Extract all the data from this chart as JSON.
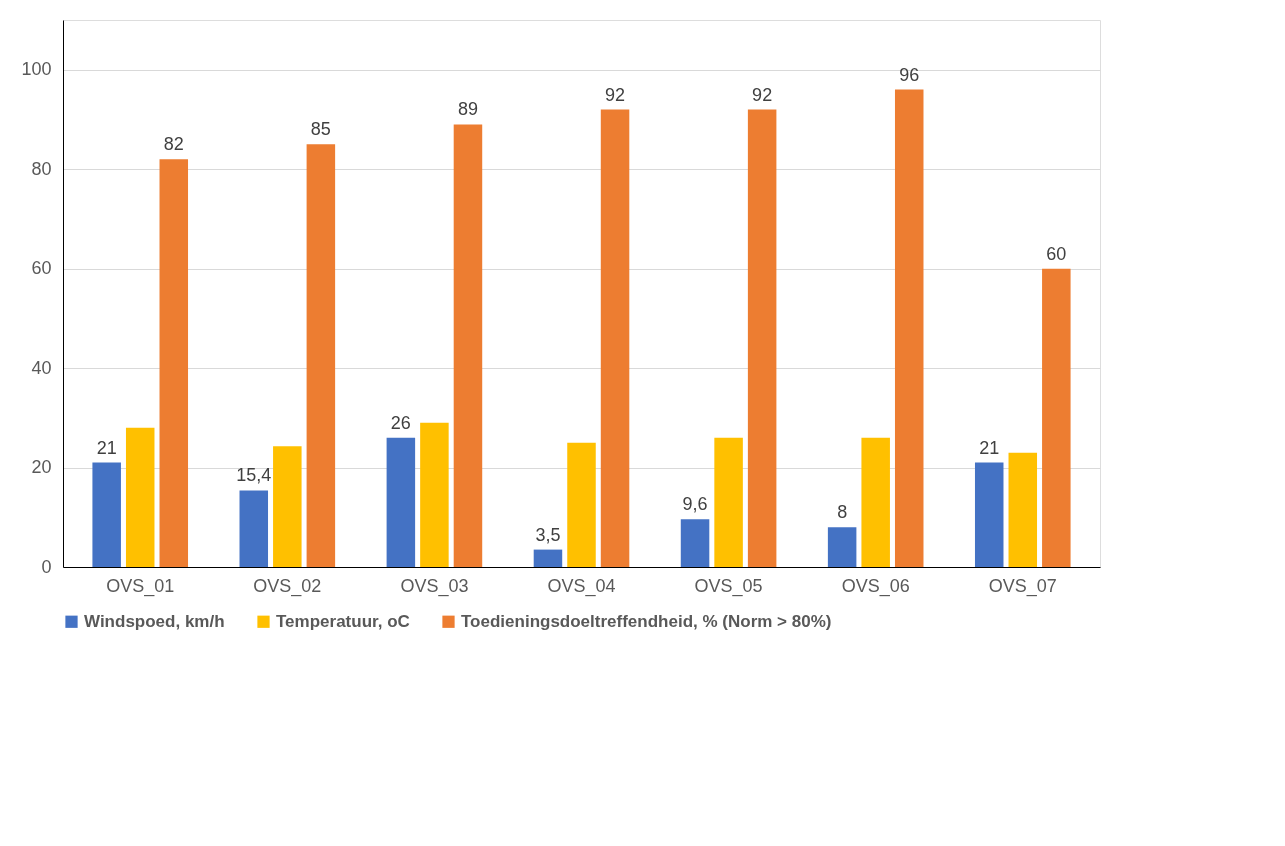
{
  "chart_data": {
    "type": "bar",
    "categories": [
      "OVS_01",
      "OVS_02",
      "OVS_03",
      "OVS_04",
      "OVS_05",
      "OVS_06",
      "OVS_07"
    ],
    "series": [
      {
        "name": "Windspoed, km/h",
        "color": "#4472c4",
        "values": [
          21,
          15.4,
          26,
          3.5,
          9.6,
          8,
          21
        ],
        "value_labels": [
          "21",
          "15,4",
          "26",
          "3,5",
          "9,6",
          "8",
          "21"
        ]
      },
      {
        "name": "Temperatuur, oC",
        "color": "#ffc000",
        "values": [
          28,
          24.3,
          29,
          25,
          26,
          26,
          23
        ]
      },
      {
        "name": "Toedieningsdoeltreffendheid, % (Norm > 80%)",
        "color": "#ed7d31",
        "values": [
          82,
          85,
          89,
          92,
          92,
          96,
          60
        ],
        "value_labels": [
          "82",
          "85",
          "89",
          "92",
          "92",
          "96",
          "60"
        ]
      }
    ],
    "ylim": [
      0,
      110
    ],
    "yticks": [
      0,
      20,
      40,
      60,
      80,
      100
    ],
    "grid": "y",
    "legend": "bottom"
  }
}
